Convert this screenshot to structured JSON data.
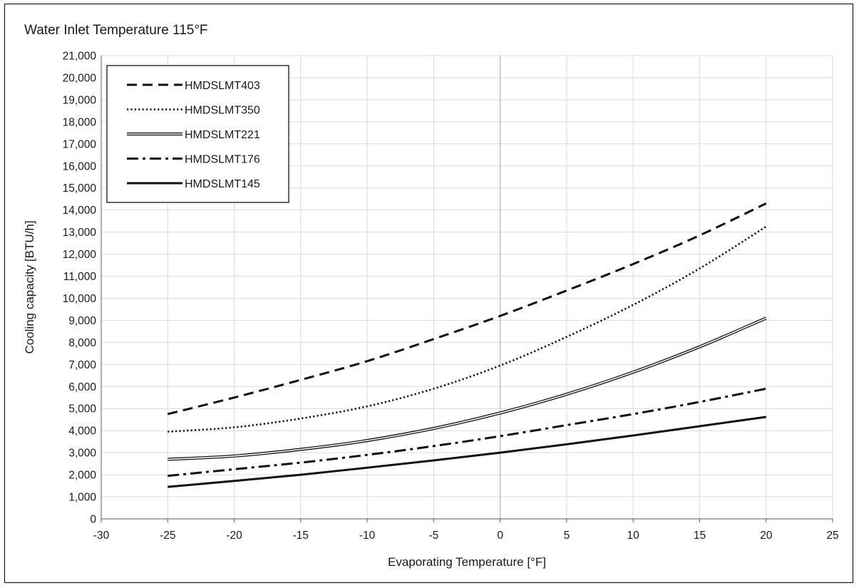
{
  "chart_data": {
    "type": "line",
    "title": "Water Inlet Temperature 115°F",
    "xlabel": "Evaporating Temperature [°F]",
    "ylabel": "Cooling capacity [BTU/h]",
    "xlim": [
      -30,
      25
    ],
    "ylim": [
      0,
      21000
    ],
    "x_ticks": [
      -30,
      -25,
      -20,
      -15,
      -10,
      -5,
      0,
      5,
      10,
      15,
      20,
      25
    ],
    "y_ticks": [
      0,
      1000,
      2000,
      3000,
      4000,
      5000,
      6000,
      7000,
      8000,
      9000,
      10000,
      11000,
      12000,
      13000,
      14000,
      15000,
      16000,
      17000,
      18000,
      19000,
      20000,
      21000
    ],
    "x_tick_labels": [
      "-30",
      "-25",
      "-20",
      "-15",
      "-10",
      "-5",
      "0",
      "5",
      "10",
      "15",
      "20",
      "25"
    ],
    "y_tick_labels": [
      "0",
      "1,000",
      "2,000",
      "3,000",
      "4,000",
      "5,000",
      "6,000",
      "7,000",
      "8,000",
      "9,000",
      "10,000",
      "11,000",
      "12,000",
      "13,000",
      "14,000",
      "15,000",
      "16,000",
      "17,000",
      "18,000",
      "19,000",
      "20,000",
      "21,000"
    ],
    "grid": true,
    "legend_position": "top-left",
    "x": [
      -25,
      -20,
      -15,
      -10,
      -5,
      0,
      5,
      10,
      15,
      20
    ],
    "series": [
      {
        "name": "HMDSLMT403",
        "style": "dashed",
        "values": [
          4750,
          5500,
          6300,
          7150,
          8150,
          9200,
          10350,
          11550,
          12850,
          14300
        ]
      },
      {
        "name": "HMDSLMT350",
        "style": "dotted",
        "values": [
          3950,
          4150,
          4550,
          5100,
          5900,
          6950,
          8250,
          9700,
          11350,
          13250
        ]
      },
      {
        "name": "HMDSLMT221",
        "style": "double",
        "values": [
          2700,
          2850,
          3150,
          3550,
          4100,
          4800,
          5650,
          6650,
          7800,
          9100
        ]
      },
      {
        "name": "HMDSLMT176",
        "style": "dashdot",
        "values": [
          1950,
          2250,
          2550,
          2900,
          3300,
          3750,
          4250,
          4750,
          5300,
          5900
        ]
      },
      {
        "name": "HMDSLMT145",
        "style": "solid",
        "values": [
          1450,
          1720,
          2000,
          2320,
          2650,
          3000,
          3380,
          3780,
          4200,
          4620
        ]
      }
    ],
    "colors": {
      "line": "#111111",
      "grid": "#d9d9d9",
      "axis": "#595959",
      "zero_line": "#bfbfbf"
    }
  }
}
